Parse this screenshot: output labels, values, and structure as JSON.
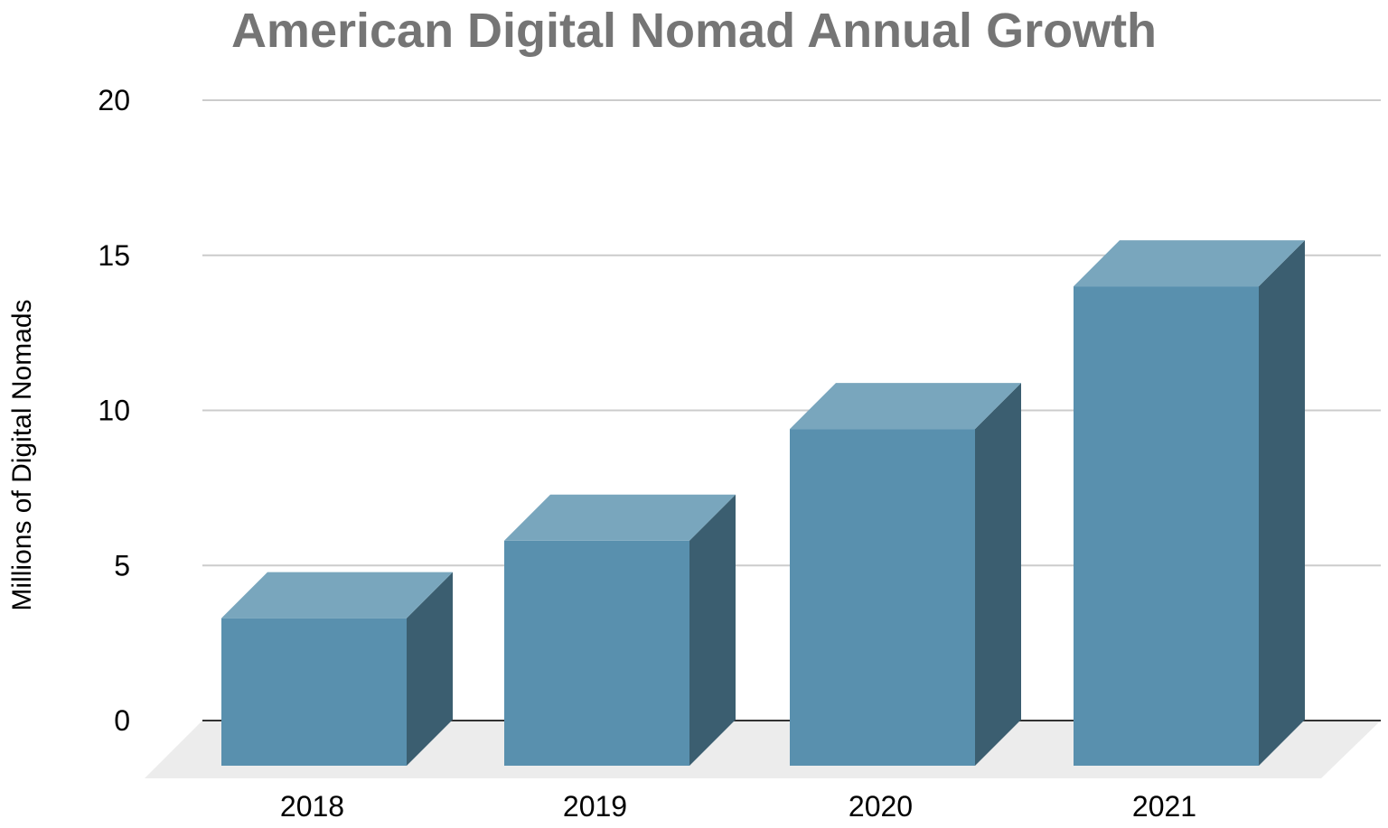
{
  "chart_data": {
    "type": "bar",
    "style": "3d",
    "title": "American Digital Nomad Annual Growth",
    "xlabel": "",
    "ylabel": "Millions of Digital Nomads",
    "categories": [
      "2018",
      "2019",
      "2020",
      "2021"
    ],
    "values": [
      3.3,
      5.8,
      9.4,
      14.0
    ],
    "ylim": [
      0,
      20
    ],
    "yticks": [
      0,
      5,
      10,
      15,
      20
    ],
    "grid": true,
    "legend": "none",
    "colors": {
      "bar_front": "#5990ae",
      "bar_top": "#79a6bd",
      "bar_side": "#3b5e70",
      "gridline": "#cccccc",
      "baseline": "#333333",
      "floor": "#ececec",
      "title": "#757575"
    }
  }
}
